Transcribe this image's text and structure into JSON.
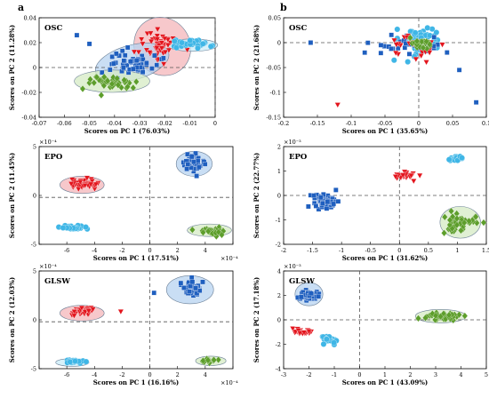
{
  "panel_letters": [
    "a",
    "b"
  ],
  "colors": {
    "red": "#e3141c",
    "blue": "#1f5fbf",
    "cyan": "#3fb6e6",
    "green": "#5d9e2b",
    "red_ellipse": "#f4b6b9",
    "blue_ellipse": "#b7d3f0",
    "cyan_ellipse": "#c9ecf8",
    "green_ellipse": "#d6ebc4"
  },
  "chart_data": [
    {
      "type": "scatter",
      "label": "OSC",
      "ylabel": "Scores on PC 2 (11.28%)",
      "xlabel": "Scores on PC 1 (76.03%)",
      "xlim": [
        -0.07,
        0
      ],
      "ylim": [
        -0.04,
        0.04
      ],
      "xticks": [
        "-0.07",
        "-0.06",
        "-0.05",
        "-0.04",
        "-0.03",
        "-0.02",
        "-0.01",
        "0"
      ],
      "yticks": [
        "-0.04",
        "-0.02",
        "0",
        "0.02",
        "0.04"
      ],
      "xexp": "",
      "yexp": "",
      "legend": false,
      "series": [
        {
          "color": "red",
          "marker": "tri",
          "center": [
            -0.022,
            0.018
          ],
          "spread": [
            0.007,
            0.011
          ],
          "n": 55,
          "ellipse": {
            "c": [
              -0.021,
              0.017
            ],
            "r": [
              0.011,
              0.024
            ],
            "rot": -35
          }
        },
        {
          "color": "blue",
          "marker": "sq",
          "center": [
            -0.033,
            0.005
          ],
          "spread": [
            0.009,
            0.009
          ],
          "n": 50,
          "ellipse": {
            "c": [
              -0.033,
              0.004
            ],
            "r": [
              0.015,
              0.014
            ],
            "rot": -15
          },
          "extra": [
            [
              -0.055,
              0.026
            ],
            [
              -0.05,
              0.019
            ],
            [
              -0.045,
              -0.004
            ]
          ]
        },
        {
          "color": "cyan",
          "marker": "ci",
          "center": [
            -0.009,
            0.019
          ],
          "spread": [
            0.006,
            0.003
          ],
          "n": 35,
          "ellipse": {
            "c": [
              -0.009,
              0.018
            ],
            "r": [
              0.01,
              0.005
            ],
            "rot": 0
          }
        },
        {
          "color": "green",
          "marker": "di",
          "center": [
            -0.042,
            -0.012
          ],
          "spread": [
            0.01,
            0.006
          ],
          "n": 40,
          "ellipse": {
            "c": [
              -0.041,
              -0.011
            ],
            "r": [
              0.015,
              0.009
            ],
            "rot": 0
          }
        }
      ]
    },
    {
      "type": "scatter",
      "label": "OSC",
      "ylabel": "Scores on PC 2 (21.68%)",
      "xlabel": "Scores on PC 1 (35.65%)",
      "xlim": [
        -0.2,
        0.1
      ],
      "ylim": [
        -0.15,
        0.05
      ],
      "xticks": [
        "-0.2",
        "-0.15",
        "-0.1",
        "-0.05",
        "0",
        "0.05",
        "0.1"
      ],
      "yticks": [
        "-0.15",
        "-0.1",
        "-0.05",
        "0",
        "0.05"
      ],
      "xexp": "",
      "yexp": "",
      "legend": false,
      "series": [
        {
          "color": "cyan",
          "marker": "ci",
          "center": [
            0.0,
            0.004
          ],
          "spread": [
            0.035,
            0.025
          ],
          "n": 45
        },
        {
          "color": "blue",
          "marker": "sq",
          "center": [
            -0.01,
            -0.005
          ],
          "spread": [
            0.05,
            0.018
          ],
          "n": 30,
          "extra": [
            [
              -0.16,
              0.0
            ],
            [
              -0.08,
              -0.02
            ],
            [
              0.085,
              -0.12
            ],
            [
              0.06,
              -0.055
            ]
          ]
        },
        {
          "color": "red",
          "marker": "tri",
          "center": [
            -0.01,
            -0.01
          ],
          "spread": [
            0.03,
            0.025
          ],
          "n": 30,
          "extra": [
            [
              -0.12,
              -0.125
            ]
          ]
        },
        {
          "color": "green",
          "marker": "di",
          "center": [
            0.0,
            -0.003
          ],
          "spread": [
            0.02,
            0.01
          ],
          "n": 25
        }
      ]
    },
    {
      "type": "scatter",
      "label": "EPO",
      "ylabel": "Scores on PC 2 (11.45%)",
      "xlabel": "Scores on PC 1 (17.51%)",
      "xlim": [
        -8,
        6
      ],
      "ylim": [
        -6,
        6.5
      ],
      "xticks": [
        "",
        "-6",
        "-4",
        "-2",
        "0",
        "2",
        "4",
        ""
      ],
      "yticks": [
        "-5",
        "0",
        "5"
      ],
      "xexp": "×10⁻⁴",
      "yexp": "×10⁻⁴",
      "legend": false,
      "series": [
        {
          "color": "red",
          "marker": "tri",
          "center": [
            -4.8,
            1.7
          ],
          "spread": [
            0.9,
            0.6
          ],
          "n": 40,
          "ellipse": {
            "c": [
              -4.9,
              1.6
            ],
            "r": [
              1.6,
              1.1
            ],
            "rot": 0
          }
        },
        {
          "color": "blue",
          "marker": "sq",
          "center": [
            3.1,
            4.4
          ],
          "spread": [
            0.7,
            0.9
          ],
          "n": 45,
          "ellipse": {
            "c": [
              3.2,
              4.3
            ],
            "r": [
              1.3,
              1.6
            ],
            "rot": 0
          }
        },
        {
          "color": "cyan",
          "marker": "ci",
          "center": [
            -5.6,
            -3.8
          ],
          "spread": [
            0.8,
            0.25
          ],
          "n": 30
        },
        {
          "color": "green",
          "marker": "di",
          "center": [
            4.6,
            -4.3
          ],
          "spread": [
            0.8,
            0.4
          ],
          "n": 35,
          "ellipse": {
            "c": [
              4.3,
              -4.2
            ],
            "r": [
              1.6,
              0.8
            ],
            "rot": 0
          }
        }
      ]
    },
    {
      "type": "scatter",
      "label": "EPO",
      "ylabel": "Scores on PC 2 (22.77%)",
      "xlabel": "Scores on PC 1 (31.62%)",
      "xlim": [
        -2,
        1.5
      ],
      "ylim": [
        -2,
        2
      ],
      "xticks": [
        "-2",
        "-1.5",
        "-1",
        "-0.5",
        "0",
        "0.5",
        "1",
        "1.5"
      ],
      "yticks": [
        "-2",
        "-1",
        "0",
        "1",
        "2"
      ],
      "xexp": "",
      "yexp": "×10⁻³",
      "legend": false,
      "series": [
        {
          "color": "red",
          "marker": "tri",
          "center": [
            0.1,
            0.8
          ],
          "spread": [
            0.18,
            0.12
          ],
          "n": 30
        },
        {
          "color": "cyan",
          "marker": "ci",
          "center": [
            0.98,
            1.5
          ],
          "spread": [
            0.12,
            0.08
          ],
          "n": 25
        },
        {
          "color": "blue",
          "marker": "sq",
          "center": [
            -1.3,
            -0.2
          ],
          "spread": [
            0.2,
            0.3
          ],
          "n": 55
        },
        {
          "color": "green",
          "marker": "di",
          "center": [
            1.05,
            -1.1
          ],
          "spread": [
            0.25,
            0.4
          ],
          "n": 45,
          "ellipse": {
            "c": [
              1.05,
              -1.1
            ],
            "r": [
              0.35,
              0.65
            ],
            "rot": 0
          }
        }
      ]
    },
    {
      "type": "scatter",
      "label": "GLSW",
      "ylabel": "Scores on PC 2 (12.03%)",
      "xlabel": "Scores on PC 1 (16.16%)",
      "xlim": [
        -8,
        6
      ],
      "ylim": [
        -6,
        6.5
      ],
      "xticks": [
        "",
        "-6",
        "-4",
        "-2",
        "0",
        "2",
        "4",
        ""
      ],
      "yticks": [
        "-5",
        "0",
        "5"
      ],
      "xexp": "×10⁻⁴",
      "yexp": "×10⁻⁴",
      "legend": false,
      "series": [
        {
          "color": "red",
          "marker": "tri",
          "center": [
            -4.9,
            1.4
          ],
          "spread": [
            0.9,
            0.5
          ],
          "n": 35,
          "ellipse": {
            "c": [
              -4.9,
              1.1
            ],
            "r": [
              1.6,
              1.0
            ],
            "rot": 0
          },
          "extra": [
            [
              -2.1,
              1.3
            ]
          ]
        },
        {
          "color": "blue",
          "marker": "sq",
          "center": [
            3.0,
            4.2
          ],
          "spread": [
            0.8,
            0.9
          ],
          "n": 40,
          "ellipse": {
            "c": [
              2.9,
              4.1
            ],
            "r": [
              1.7,
              1.8
            ],
            "rot": 0
          },
          "extra": [
            [
              0.3,
              3.7
            ]
          ]
        },
        {
          "color": "cyan",
          "marker": "ci",
          "center": [
            -5.5,
            -5.1
          ],
          "spread": [
            0.7,
            0.2
          ],
          "n": 20,
          "ellipse": {
            "c": [
              -5.6,
              -5.2
            ],
            "r": [
              1.2,
              0.5
            ],
            "rot": 0
          }
        },
        {
          "color": "green",
          "marker": "di",
          "center": [
            4.3,
            -5.0
          ],
          "spread": [
            0.4,
            0.3
          ],
          "n": 15,
          "ellipse": {
            "c": [
              4.4,
              -5.0
            ],
            "r": [
              1.1,
              0.6
            ],
            "rot": 0
          }
        }
      ]
    },
    {
      "type": "scatter",
      "label": "GLSW",
      "ylabel": "Scores on PC 2 (17.18%)",
      "xlabel": "Scores on PC 1 (43.09%)",
      "xlim": [
        -3,
        5
      ],
      "ylim": [
        -4,
        4
      ],
      "xticks": [
        "-3",
        "-2",
        "-1",
        "0",
        "1",
        "2",
        "3",
        "4",
        "5"
      ],
      "yticks": [
        "-4",
        "-2",
        "0",
        "2",
        "4"
      ],
      "xexp": "",
      "yexp": "×10⁻³",
      "legend": false,
      "series": [
        {
          "color": "blue",
          "marker": "sq",
          "center": [
            -2.0,
            2.0
          ],
          "spread": [
            0.3,
            0.4
          ],
          "n": 40,
          "ellipse": {
            "c": [
              -2.0,
              2.1
            ],
            "r": [
              0.55,
              0.95
            ],
            "rot": 0
          }
        },
        {
          "color": "red",
          "marker": "tri",
          "center": [
            -2.3,
            -1.0
          ],
          "spread": [
            0.45,
            0.2
          ],
          "n": 25
        },
        {
          "color": "cyan",
          "marker": "ci",
          "center": [
            -1.2,
            -1.7
          ],
          "spread": [
            0.35,
            0.35
          ],
          "n": 25
        },
        {
          "color": "green",
          "marker": "di",
          "center": [
            3.2,
            0.3
          ],
          "spread": [
            0.6,
            0.3
          ],
          "n": 45,
          "ellipse": {
            "c": [
              3.2,
              0.3
            ],
            "r": [
              1.0,
              0.55
            ],
            "rot": 0
          }
        }
      ]
    }
  ]
}
